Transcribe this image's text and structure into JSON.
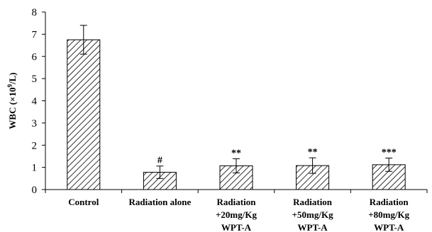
{
  "chart_data": {
    "type": "bar",
    "title": "",
    "xlabel": "",
    "ylabel": {
      "prefix": "WBC (×10",
      "superscript": "9",
      "suffix": "/L)"
    },
    "ylim": [
      0,
      8
    ],
    "yticks": [
      0,
      1,
      2,
      3,
      4,
      5,
      6,
      7,
      8
    ],
    "grid": false,
    "legend": "none",
    "bar_fill": "diagonal-hatch",
    "bar_color": "#000000",
    "categories": [
      [
        "Control"
      ],
      [
        "Radiation alone"
      ],
      [
        "Radiation",
        "+20mg/Kg",
        "WPT-A"
      ],
      [
        "Radiation",
        "+50mg/Kg",
        "WPT-A"
      ],
      [
        "Radiation",
        "+80mg/Kg",
        "WPT-A"
      ]
    ],
    "values": [
      6.75,
      0.78,
      1.07,
      1.08,
      1.12
    ],
    "errors": [
      0.65,
      0.28,
      0.32,
      0.35,
      0.3
    ],
    "annotations": [
      "",
      "#",
      "**",
      "**",
      "***"
    ]
  }
}
